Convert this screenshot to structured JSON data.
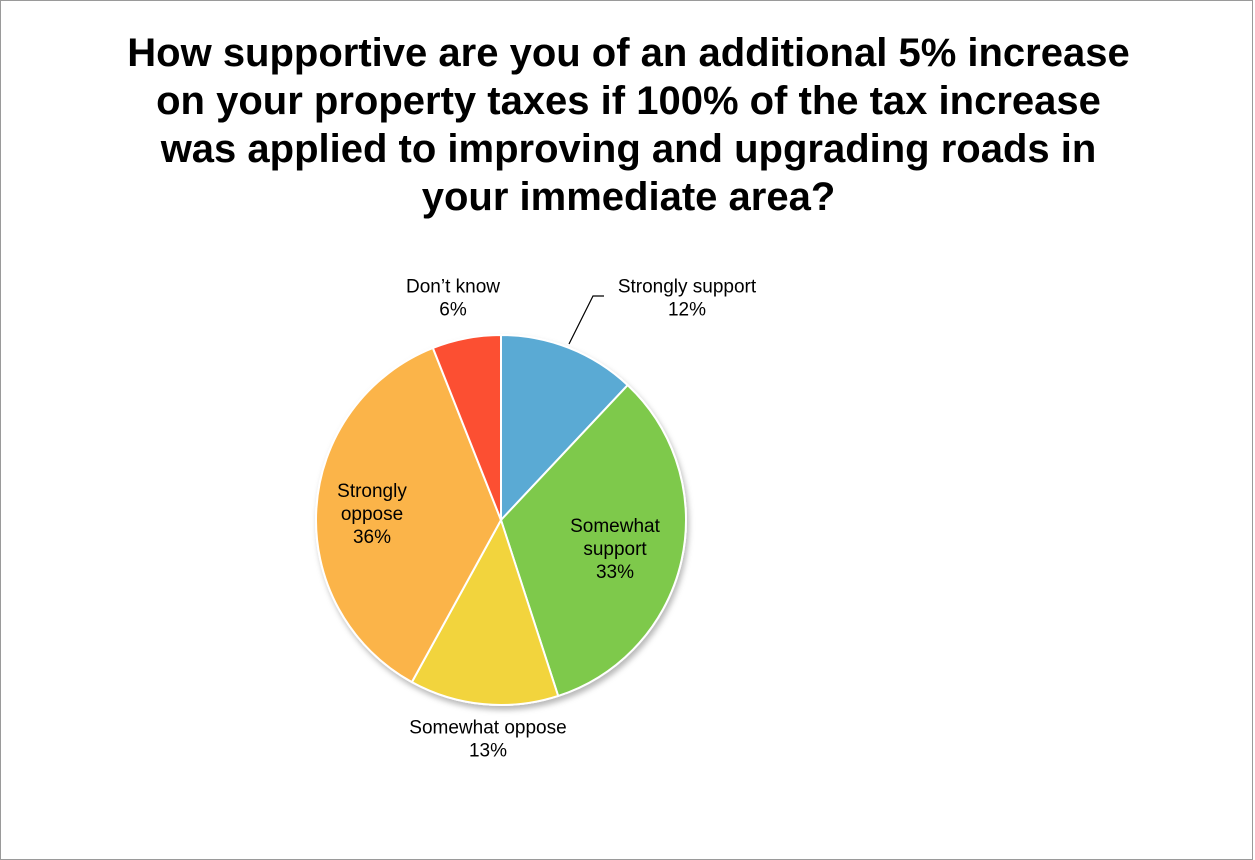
{
  "chart_data": {
    "type": "pie",
    "title": "How supportive are you of an additional 5% increase on your property taxes if 100% of the tax increase was applied to improving and upgrading roads in your immediate area?",
    "slices": [
      {
        "label": "Strongly support",
        "value": 12,
        "value_label": "12%",
        "color": "#5aaad4",
        "label_placement": "outside"
      },
      {
        "label": "Somewhat support",
        "value": 33,
        "value_label": "33%",
        "color": "#7ec94c",
        "label_placement": "inside"
      },
      {
        "label": "Somewhat oppose",
        "value": 13,
        "value_label": "13%",
        "color": "#f2d43d",
        "label_placement": "outside"
      },
      {
        "label": "Strongly oppose",
        "value": 36,
        "value_label": "36%",
        "color": "#fbb44a",
        "label_placement": "inside"
      },
      {
        "label": "Don’t know",
        "value": 6,
        "value_label": "6%",
        "color": "#fc4f32",
        "label_placement": "outside"
      }
    ],
    "start_angle": "12 o'clock",
    "direction": "clockwise",
    "legend": "none"
  }
}
